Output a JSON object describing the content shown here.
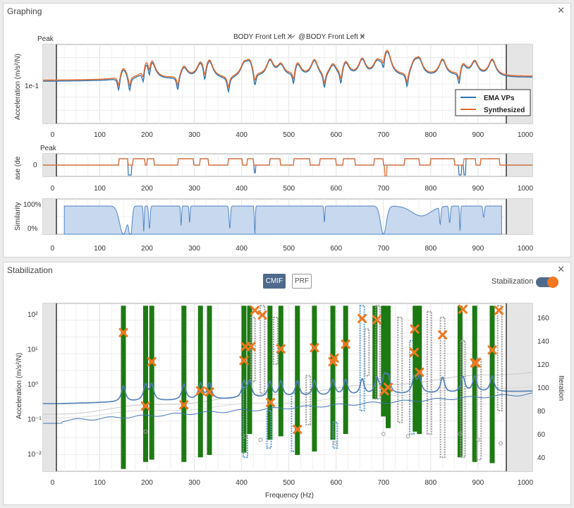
{
  "graphing": {
    "title": "Graphing",
    "close_icon": "close-icon",
    "peak_label_top": "Peak",
    "peak_label_mid": "Peak",
    "selector_response": "BODY Front Left X",
    "selector_sep": "@",
    "selector_reference": "BODY Front Left X",
    "chevron_icon": "chevron-down-icon",
    "legend": [
      "EMA VPs",
      "Synthesized"
    ],
    "ylabel_mag": "Acceleration (m/s²/N)",
    "ylabel_phase": "ase (de",
    "ylabel_sim": "Similarity",
    "yticks_mag": [
      "1e-1"
    ],
    "yticks_phase": [
      "0"
    ],
    "yticks_sim": [
      "100%",
      "0%"
    ],
    "xticks": [
      "0",
      "100",
      "200",
      "300",
      "400",
      "500",
      "600",
      "700",
      "800",
      "900",
      "1000"
    ]
  },
  "stabilization": {
    "title": "Stabilization",
    "close_icon": "close-icon",
    "cmif_button": "CMIF",
    "prf_button": "PRF",
    "toggle_label": "Stabilization",
    "ylabel_left": "Acceleration (m/s²/N)",
    "ylabel_right": "Iteration",
    "xlabel": "Frequency (Hz)",
    "yticks_left": [
      "10²",
      "10¹",
      "10⁰",
      "10⁻¹",
      "10⁻²"
    ],
    "yticks_right": [
      "160",
      "140",
      "120",
      "100",
      "80",
      "60",
      "40"
    ],
    "xticks": [
      "0",
      "100",
      "200",
      "300",
      "400",
      "500",
      "600",
      "700",
      "800",
      "900",
      "1000"
    ]
  },
  "colors": {
    "ema": "#2f73b0",
    "synth": "#e8692a",
    "stable": "#1d7a12",
    "blue_marker": "#5b9bd3",
    "grey_marker": "#9c9c9c",
    "pole": "#f07820",
    "sim_fill": "#c8d8ee",
    "shade": "#e5e5e5"
  },
  "chart_data": [
    {
      "type": "line",
      "name": "magnitude",
      "xlim": [
        -20,
        1015
      ],
      "series": [
        {
          "name": "EMA VPs"
        },
        {
          "name": "Synthesized"
        }
      ],
      "selected_band": [
        25,
        950
      ],
      "legend_position": "bottom-right"
    },
    {
      "type": "line",
      "name": "phase",
      "xlim": [
        -20,
        1015
      ],
      "selected_band": [
        25,
        950
      ]
    },
    {
      "type": "area",
      "name": "similarity",
      "xlim": [
        -20,
        1015
      ],
      "ylim": [
        0,
        100
      ],
      "selected_band": [
        25,
        950
      ]
    },
    {
      "type": "scatter",
      "name": "stabilization",
      "xlim": [
        -20,
        1015
      ],
      "ylim_log": [
        -2.5,
        2.3
      ],
      "selected_band": [
        25,
        950
      ],
      "columns": [
        {
          "f": 150,
          "kind": "stable",
          "y0": 30,
          "y1": 170
        },
        {
          "f": 197,
          "kind": "stable",
          "y0": 36,
          "y1": 170
        },
        {
          "f": 210,
          "kind": "stable",
          "y0": 38,
          "y1": 170
        },
        {
          "f": 278,
          "kind": "stable",
          "y0": 36,
          "y1": 170
        },
        {
          "f": 313,
          "kind": "stable",
          "y0": 40,
          "y1": 170
        },
        {
          "f": 332,
          "kind": "stable",
          "y0": 42,
          "y1": 170
        },
        {
          "f": 405,
          "kind": "stable",
          "y0": 44,
          "y1": 170
        },
        {
          "f": 408,
          "kind": "blue",
          "y0": 40,
          "y1": 100
        },
        {
          "f": 417,
          "kind": "stable",
          "y0": 60,
          "y1": 170
        },
        {
          "f": 424,
          "kind": "grey",
          "y0": 105,
          "y1": 160
        },
        {
          "f": 444,
          "kind": "grey",
          "y0": 95,
          "y1": 170
        },
        {
          "f": 460,
          "kind": "stable",
          "y0": 55,
          "y1": 170
        },
        {
          "f": 458,
          "kind": "blue",
          "y0": 48,
          "y1": 80
        },
        {
          "f": 472,
          "kind": "grey",
          "y0": 120,
          "y1": 160
        },
        {
          "f": 483,
          "kind": "stable",
          "y0": 58,
          "y1": 170
        },
        {
          "f": 510,
          "kind": "blue",
          "y0": 45,
          "y1": 95
        },
        {
          "f": 518,
          "kind": "stable",
          "y0": 42,
          "y1": 170
        },
        {
          "f": 541,
          "kind": "grey",
          "y0": 68,
          "y1": 110
        },
        {
          "f": 554,
          "kind": "stable",
          "y0": 45,
          "y1": 170
        },
        {
          "f": 593,
          "kind": "stable",
          "y0": 55,
          "y1": 170
        },
        {
          "f": 598,
          "kind": "blue",
          "y0": 48,
          "y1": 70
        },
        {
          "f": 620,
          "kind": "stable",
          "y0": 60,
          "y1": 170
        },
        {
          "f": 655,
          "kind": "blue",
          "y0": 80,
          "y1": 170
        },
        {
          "f": 665,
          "kind": "grey",
          "y0": 110,
          "y1": 150
        },
        {
          "f": 682,
          "kind": "stable",
          "y0": 90,
          "y1": 170
        },
        {
          "f": 688,
          "kind": "grey",
          "y0": 90,
          "y1": 170
        },
        {
          "f": 700,
          "kind": "stable",
          "y0": 75,
          "y1": 170
        },
        {
          "f": 710,
          "kind": "stable",
          "y0": 65,
          "y1": 170
        },
        {
          "f": 735,
          "kind": "grey",
          "y0": 70,
          "y1": 160
        },
        {
          "f": 760,
          "kind": "blue",
          "y0": 60,
          "y1": 140
        },
        {
          "f": 767,
          "kind": "stable",
          "y0": 62,
          "y1": 170
        },
        {
          "f": 776,
          "kind": "stable",
          "y0": 60,
          "y1": 170
        },
        {
          "f": 797,
          "kind": "grey",
          "y0": 60,
          "y1": 165
        },
        {
          "f": 825,
          "kind": "grey",
          "y0": 40,
          "y1": 160
        },
        {
          "f": 862,
          "kind": "stable",
          "y0": 40,
          "y1": 170
        },
        {
          "f": 868,
          "kind": "grey",
          "y0": 40,
          "y1": 140
        },
        {
          "f": 893,
          "kind": "stable",
          "y0": 36,
          "y1": 170
        },
        {
          "f": 902,
          "kind": "grey",
          "y0": 38,
          "y1": 125
        },
        {
          "f": 930,
          "kind": "stable",
          "y0": 35,
          "y1": 170
        },
        {
          "f": 946,
          "kind": "grey",
          "y0": 80,
          "y1": 170
        }
      ],
      "poles": [
        {
          "f": 150,
          "it": 147
        },
        {
          "f": 197,
          "it": 84
        },
        {
          "f": 210,
          "it": 122
        },
        {
          "f": 278,
          "it": 85
        },
        {
          "f": 313,
          "it": 97
        },
        {
          "f": 332,
          "it": 96
        },
        {
          "f": 405,
          "it": 123
        },
        {
          "f": 408,
          "it": 135
        },
        {
          "f": 420,
          "it": 135
        },
        {
          "f": 428,
          "it": 166
        },
        {
          "f": 444,
          "it": 162
        },
        {
          "f": 461,
          "it": 87
        },
        {
          "f": 483,
          "it": 133
        },
        {
          "f": 518,
          "it": 64
        },
        {
          "f": 554,
          "it": 134
        },
        {
          "f": 593,
          "it": 122
        },
        {
          "f": 596,
          "it": 125
        },
        {
          "f": 620,
          "it": 137
        },
        {
          "f": 655,
          "it": 159
        },
        {
          "f": 686,
          "it": 158
        },
        {
          "f": 702,
          "it": 97
        },
        {
          "f": 710,
          "it": 100
        },
        {
          "f": 765,
          "it": 130
        },
        {
          "f": 766,
          "it": 150
        },
        {
          "f": 776,
          "it": 113
        },
        {
          "f": 825,
          "it": 145
        },
        {
          "f": 868,
          "it": 167
        },
        {
          "f": 893,
          "it": 121
        },
        {
          "f": 896,
          "it": 121
        },
        {
          "f": 930,
          "it": 132
        },
        {
          "f": 944,
          "it": 166
        }
      ]
    }
  ]
}
